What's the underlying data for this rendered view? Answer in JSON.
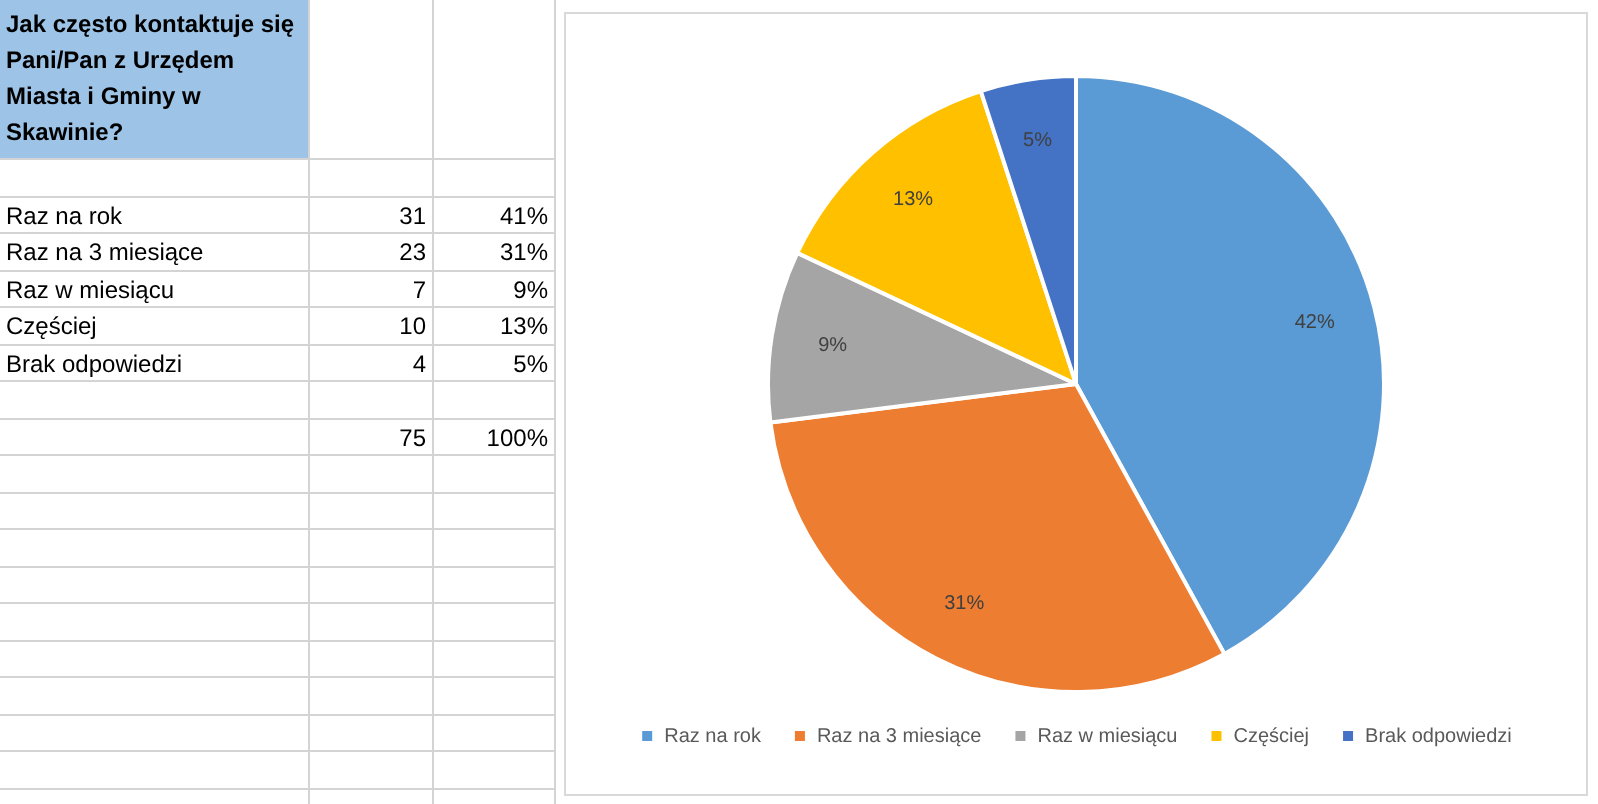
{
  "chart_data": {
    "type": "pie",
    "title": "Jak często kontaktuje się Pani/Pan z Urzędem Miasta i Gminy w Skawinie?",
    "categories": [
      "Raz na rok",
      "Raz na 3 miesiące",
      "Raz w miesiącu",
      "Częściej",
      "Brak odpowiedzi"
    ],
    "values": [
      42,
      31,
      9,
      13,
      5
    ],
    "colors": [
      "#5b9bd5",
      "#ed7d31",
      "#a5a5a5",
      "#ffc000",
      "#4472c4"
    ],
    "value_labels": [
      "42%",
      "31%",
      "9%",
      "13%",
      "5%"
    ],
    "annotations": [
      "31",
      "41%",
      "23",
      "31%",
      "7",
      "9%",
      "10",
      "13%",
      "4",
      "5%",
      "75",
      "100%"
    ],
    "legend": "bottom"
  }
}
